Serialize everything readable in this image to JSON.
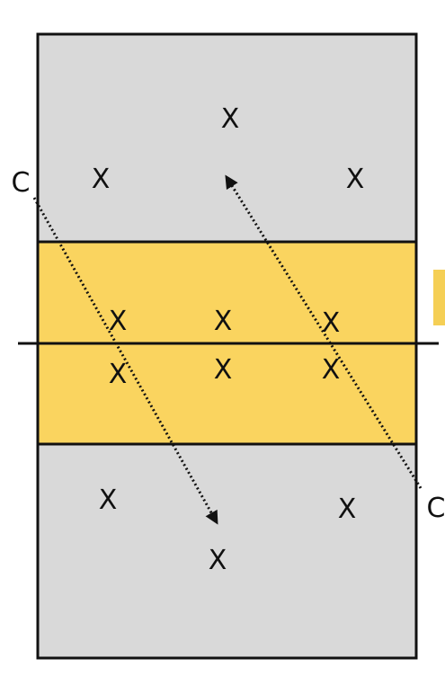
{
  "colors": {
    "background": "#ffffff",
    "court_fill": "#d9d9d9",
    "zone_fill": "#fad45f",
    "line": "#111111",
    "tab_fill": "#f5cf55"
  },
  "players": [
    {
      "id": "p1",
      "label": "X"
    },
    {
      "id": "p2",
      "label": "X"
    },
    {
      "id": "p3",
      "label": "X"
    },
    {
      "id": "p4",
      "label": "X"
    },
    {
      "id": "p5",
      "label": "X"
    },
    {
      "id": "p6",
      "label": "X"
    },
    {
      "id": "p7",
      "label": "X"
    },
    {
      "id": "p8",
      "label": "X"
    },
    {
      "id": "p9",
      "label": "X"
    },
    {
      "id": "p10",
      "label": "X"
    },
    {
      "id": "p11",
      "label": "X"
    },
    {
      "id": "p12",
      "label": "X"
    }
  ],
  "coaches": [
    {
      "id": "c1",
      "label": "C"
    },
    {
      "id": "c2",
      "label": "C"
    }
  ]
}
